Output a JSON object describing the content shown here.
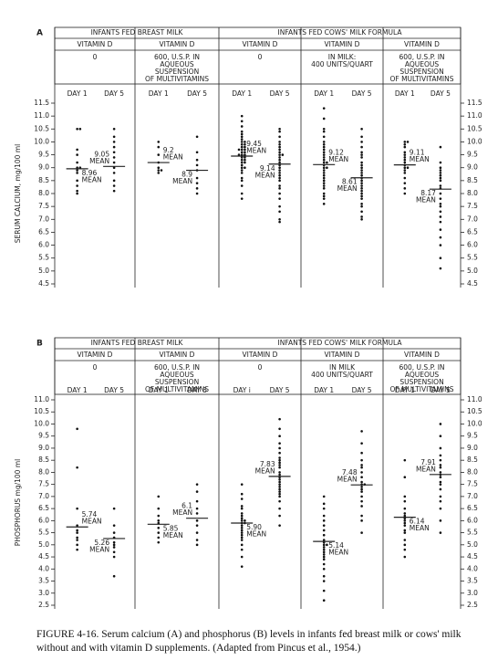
{
  "caption": "FIGURE 4-16. Serum calcium (A) and phosphorus (B) levels in infants fed breast milk or cows' milk without and with vitamin D supplements. (Adapted from Pincus et al., 1954.)",
  "chart_data": [
    {
      "type": "dot",
      "panel_label": "A",
      "ylabel": "SERUM CALCIUM, mg/100 ml",
      "mean_word": "MEAN",
      "ylim": [
        4.5,
        11.5
      ],
      "yticks": [
        {
          "value": 4.5,
          "label": "4.5"
        },
        {
          "value": 5,
          "label": "5.0"
        },
        {
          "value": 5.5,
          "label": "5.5"
        },
        {
          "value": 6,
          "label": "6.0"
        },
        {
          "value": 6.5,
          "label": "6.5"
        },
        {
          "value": 7,
          "label": "7.0"
        },
        {
          "value": 7.5,
          "label": "7.5"
        },
        {
          "value": 8,
          "label": "8.0"
        },
        {
          "value": 8.5,
          "label": "8.5"
        },
        {
          "value": 9,
          "label": "9.0"
        },
        {
          "value": 9.5,
          "label": "9.5"
        },
        {
          "value": 10,
          "label": "10.0"
        },
        {
          "value": 10.5,
          "label": "10.5"
        },
        {
          "value": 11,
          "label": "11.0"
        },
        {
          "value": 11.5,
          "label": "11.5"
        }
      ],
      "groups": [
        {
          "title": "INFANTS FED BREAST MILK",
          "panels": [
            {
              "heading": "VITAMIN D",
              "dose": [
                "0"
              ],
              "columns": [
                {
                  "label": "DAY 1",
                  "values": [
                    10.5,
                    10.5,
                    9.7,
                    9.5,
                    9.2,
                    9.0,
                    9.0,
                    8.9,
                    8.8,
                    8.5,
                    8.3,
                    8.1,
                    8.0
                  ],
                  "mean": 8.96,
                  "mean_label": "8.96"
                },
                {
                  "label": "DAY 5",
                  "values": [
                    10.5,
                    10.2,
                    10.0,
                    9.8,
                    9.6,
                    9.4,
                    9.2,
                    9.0,
                    8.8,
                    8.5,
                    8.3,
                    8.1
                  ],
                  "mean": 9.05,
                  "mean_label": "9.05"
                }
              ]
            },
            {
              "heading": "VITAMIN D",
              "dose": [
                "600, U.S.P. IN",
                "AQUEOUS",
                "SUSPENSION",
                "OF MULTIVITAMINS"
              ],
              "columns": [
                {
                  "label": "DAY 1",
                  "values": [
                    10.0,
                    9.8,
                    9.5,
                    9.2,
                    9.0,
                    8.9,
                    8.9,
                    8.8
                  ],
                  "mean": 9.2,
                  "mean_label": "9.2"
                },
                {
                  "label": "DAY 5",
                  "values": [
                    10.2,
                    9.6,
                    9.3,
                    9.1,
                    8.9,
                    8.6,
                    8.4,
                    8.2,
                    8.0
                  ],
                  "mean": 8.9,
                  "mean_label": "8.9"
                }
              ]
            }
          ]
        },
        {
          "title": "INFANTS FED COWS' MILK FORMULA",
          "panels": [
            {
              "heading": "VITAMIN D",
              "dose": [
                "0"
              ],
              "columns": [
                {
                  "label": "DAY 1",
                  "values": [
                    11.0,
                    10.8,
                    10.6,
                    10.4,
                    10.3,
                    10.2,
                    10.1,
                    10.0,
                    10.0,
                    9.9,
                    9.9,
                    9.8,
                    9.8,
                    9.7,
                    9.7,
                    9.7,
                    9.6,
                    9.6,
                    9.5,
                    9.5,
                    9.5,
                    9.4,
                    9.4,
                    9.3,
                    9.3,
                    9.2,
                    9.2,
                    9.1,
                    9.0,
                    9.0,
                    8.9,
                    8.8,
                    8.6,
                    8.5,
                    8.3,
                    8.0,
                    7.8
                  ],
                  "mean": 9.45,
                  "mean_label": "9.45"
                },
                {
                  "label": "DAY 5",
                  "values": [
                    10.5,
                    10.4,
                    10.2,
                    10.0,
                    9.9,
                    9.8,
                    9.7,
                    9.6,
                    9.5,
                    9.5,
                    9.4,
                    9.3,
                    9.2,
                    9.1,
                    9.0,
                    8.9,
                    8.8,
                    8.7,
                    8.6,
                    8.5,
                    8.3,
                    8.2,
                    8.0,
                    7.8,
                    7.5,
                    7.3,
                    7.0,
                    6.9
                  ],
                  "mean": 9.14,
                  "mean_label": "9.14"
                }
              ]
            },
            {
              "heading": "VITAMIN D",
              "dose": [
                "IN MILK:",
                "400 UNITS/QUART"
              ],
              "columns": [
                {
                  "label": "DAY 1",
                  "values": [
                    11.3,
                    10.9,
                    10.5,
                    10.4,
                    10.2,
                    10.0,
                    9.9,
                    9.8,
                    9.7,
                    9.6,
                    9.5,
                    9.4,
                    9.3,
                    9.2,
                    9.2,
                    9.1,
                    9.0,
                    9.0,
                    8.9,
                    8.8,
                    8.7,
                    8.6,
                    8.5,
                    8.4,
                    8.3,
                    8.2,
                    8.0,
                    7.9,
                    7.8,
                    7.6
                  ],
                  "mean": 9.12,
                  "mean_label": "9.12"
                },
                {
                  "label": "DAY 5",
                  "values": [
                    10.5,
                    10.2,
                    10.0,
                    9.8,
                    9.6,
                    9.5,
                    9.4,
                    9.2,
                    9.1,
                    9.0,
                    8.9,
                    8.8,
                    8.7,
                    8.6,
                    8.5,
                    8.4,
                    8.3,
                    8.2,
                    8.1,
                    8.0,
                    7.9,
                    7.8,
                    7.6,
                    7.5,
                    7.3,
                    7.1,
                    7.0
                  ],
                  "mean": 8.61,
                  "mean_label": "8.61"
                }
              ]
            },
            {
              "heading": "VITAMIN D",
              "dose": [
                "600, U.S.P. IN",
                "AQUEOUS",
                "SUSPENSION",
                "OF MULTIVITAMINS"
              ],
              "columns": [
                {
                  "label": "DAY 1",
                  "values": [
                    10.0,
                    10.0,
                    9.9,
                    9.8,
                    9.6,
                    9.5,
                    9.4,
                    9.3,
                    9.2,
                    9.1,
                    9.0,
                    9.0,
                    8.9,
                    8.8,
                    8.6,
                    8.4,
                    8.2,
                    8.0
                  ],
                  "mean": 9.11,
                  "mean_label": "9.11"
                },
                {
                  "label": "DAY 5",
                  "values": [
                    9.8,
                    9.2,
                    9.0,
                    8.9,
                    8.8,
                    8.7,
                    8.6,
                    8.5,
                    8.3,
                    8.2,
                    8.0,
                    7.8,
                    7.6,
                    7.5,
                    7.3,
                    7.1,
                    6.9,
                    6.6,
                    6.3,
                    6.0,
                    5.5,
                    5.1
                  ],
                  "mean": 8.17,
                  "mean_label": "8.17"
                }
              ]
            }
          ]
        }
      ]
    },
    {
      "type": "dot",
      "panel_label": "B",
      "ylabel": "PHOSPHORUS mg/100 ml",
      "mean_word": "MEAN",
      "ylim": [
        2.5,
        11.0
      ],
      "yticks": [
        {
          "value": 2.5,
          "label": "2.5"
        },
        {
          "value": 3,
          "label": "3.0"
        },
        {
          "value": 3.5,
          "label": "3.5"
        },
        {
          "value": 4,
          "label": "4.0"
        },
        {
          "value": 4.5,
          "label": "4.5"
        },
        {
          "value": 5,
          "label": "5.0"
        },
        {
          "value": 5.5,
          "label": "5.5"
        },
        {
          "value": 6,
          "label": "6.0"
        },
        {
          "value": 6.5,
          "label": "6.5"
        },
        {
          "value": 7,
          "label": "7.0"
        },
        {
          "value": 7.5,
          "label": "7.5"
        },
        {
          "value": 8,
          "label": "8.0"
        },
        {
          "value": 8.5,
          "label": "8.5"
        },
        {
          "value": 9,
          "label": "9.0"
        },
        {
          "value": 9.5,
          "label": "9.5"
        },
        {
          "value": 10,
          "label": "10.0"
        },
        {
          "value": 10.5,
          "label": "10.5"
        },
        {
          "value": 11,
          "label": "11.0"
        }
      ],
      "groups": [
        {
          "title": "INFANTS FED BREAST MILK",
          "panels": [
            {
              "heading": "VITAMIN D",
              "dose": [
                "0"
              ],
              "columns": [
                {
                  "label": "DAY 1",
                  "values": [
                    9.8,
                    8.2,
                    6.5,
                    5.8,
                    5.6,
                    5.5,
                    5.3,
                    5.2,
                    5.0,
                    4.8
                  ],
                  "mean": 5.74,
                  "mean_label": "5.74"
                },
                {
                  "label": "DAY 5",
                  "values": [
                    6.5,
                    5.8,
                    5.5,
                    5.3,
                    5.1,
                    5.0,
                    4.9,
                    4.7,
                    4.5,
                    3.7
                  ],
                  "mean": 5.26,
                  "mean_label": "5.26"
                }
              ]
            },
            {
              "heading": "VITAMIN D",
              "dose": [
                "600, U.S.P. IN",
                "AQUEOUS",
                "SUSPENSION",
                "OF MULTIVITAMINS"
              ],
              "columns": [
                {
                  "label": "DAY 1",
                  "values": [
                    7.0,
                    6.5,
                    6.2,
                    6.0,
                    5.9,
                    5.7,
                    5.5,
                    5.3,
                    5.1
                  ],
                  "mean": 5.85,
                  "mean_label": "5.85"
                },
                {
                  "label": "DAY 5",
                  "values": [
                    7.5,
                    7.2,
                    6.8,
                    6.5,
                    6.3,
                    6.0,
                    5.8,
                    5.5,
                    5.2,
                    5.0
                  ],
                  "mean": 6.1,
                  "mean_label": "6.1"
                }
              ]
            }
          ]
        },
        {
          "title": "INFANTS FED COWS' MILK FORMULA",
          "panels": [
            {
              "heading": "VITAMIN D",
              "dose": [
                "0"
              ],
              "columns": [
                {
                  "label": "DAY i",
                  "values": [
                    7.5,
                    7.1,
                    6.9,
                    6.6,
                    6.5,
                    6.3,
                    6.2,
                    6.1,
                    6.0,
                    6.0,
                    5.9,
                    5.9,
                    5.8,
                    5.7,
                    5.6,
                    5.5,
                    5.4,
                    5.3,
                    5.2,
                    5.0,
                    4.8,
                    4.5,
                    4.1
                  ],
                  "mean": 5.9,
                  "mean_label": "5.90"
                },
                {
                  "label": "DAY 5",
                  "values": [
                    10.2,
                    9.8,
                    9.5,
                    9.2,
                    9.0,
                    8.8,
                    8.6,
                    8.5,
                    8.4,
                    8.3,
                    8.2,
                    8.0,
                    7.9,
                    7.8,
                    7.7,
                    7.6,
                    7.5,
                    7.4,
                    7.3,
                    7.2,
                    7.1,
                    7.0,
                    6.8,
                    6.5,
                    6.2,
                    5.8
                  ],
                  "mean": 7.83,
                  "mean_label": "7.83"
                }
              ]
            },
            {
              "heading": "VITAMIN D",
              "dose": [
                "IN MILK",
                "400 UNITS/QUART"
              ],
              "columns": [
                {
                  "label": "DAY 1",
                  "values": [
                    7.0,
                    6.7,
                    6.5,
                    6.2,
                    6.0,
                    5.8,
                    5.6,
                    5.4,
                    5.2,
                    5.1,
                    5.0,
                    5.0,
                    4.9,
                    4.8,
                    4.7,
                    4.6,
                    4.5,
                    4.4,
                    4.2,
                    4.0,
                    3.7,
                    3.5,
                    3.1,
                    2.7
                  ],
                  "mean": 5.14,
                  "mean_label": "5.14"
                },
                {
                  "label": "DAY 5",
                  "values": [
                    9.7,
                    9.2,
                    8.8,
                    8.5,
                    8.3,
                    8.2,
                    8.0,
                    7.8,
                    7.6,
                    7.5,
                    7.5,
                    7.4,
                    7.3,
                    7.2,
                    7.0,
                    6.8,
                    6.6,
                    6.2,
                    6.0,
                    5.5
                  ],
                  "mean": 7.48,
                  "mean_label": "7.48"
                }
              ]
            },
            {
              "heading": "VITAMIN D",
              "dose": [
                "600, U.S.P. IN",
                "AQUEOUS",
                "SUSPENSION",
                "OF MULTIVITAMINS"
              ],
              "columns": [
                {
                  "label": "DAY 1",
                  "values": [
                    8.5,
                    7.8,
                    7.0,
                    6.8,
                    6.5,
                    6.3,
                    6.2,
                    6.1,
                    6.0,
                    5.9,
                    5.8,
                    5.6,
                    5.5,
                    5.2,
                    5.0,
                    4.8,
                    4.5
                  ],
                  "mean": 6.14,
                  "mean_label": "6.14"
                },
                {
                  "label": "DAY 5",
                  "values": [
                    10.0,
                    9.5,
                    9.0,
                    8.7,
                    8.5,
                    8.3,
                    8.2,
                    8.0,
                    7.9,
                    7.8,
                    7.6,
                    7.5,
                    7.3,
                    7.0,
                    6.8,
                    6.5,
                    6.0,
                    5.5
                  ],
                  "mean": 7.91,
                  "mean_label": "7.91"
                }
              ]
            }
          ]
        }
      ]
    }
  ]
}
